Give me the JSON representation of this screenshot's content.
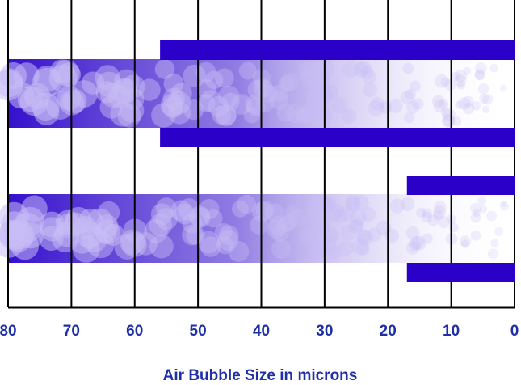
{
  "chart_data": {
    "type": "bar",
    "orientation": "horizontal",
    "x_label": "Air Bubble Size in microns",
    "categories": [
      null,
      null
    ],
    "values": [
      56,
      17
    ],
    "color": "#2b00c9",
    "xlim": [
      80,
      0
    ],
    "xticks": [
      80,
      70,
      60,
      50,
      40,
      30,
      20,
      10,
      0
    ],
    "grid": true
  }
}
